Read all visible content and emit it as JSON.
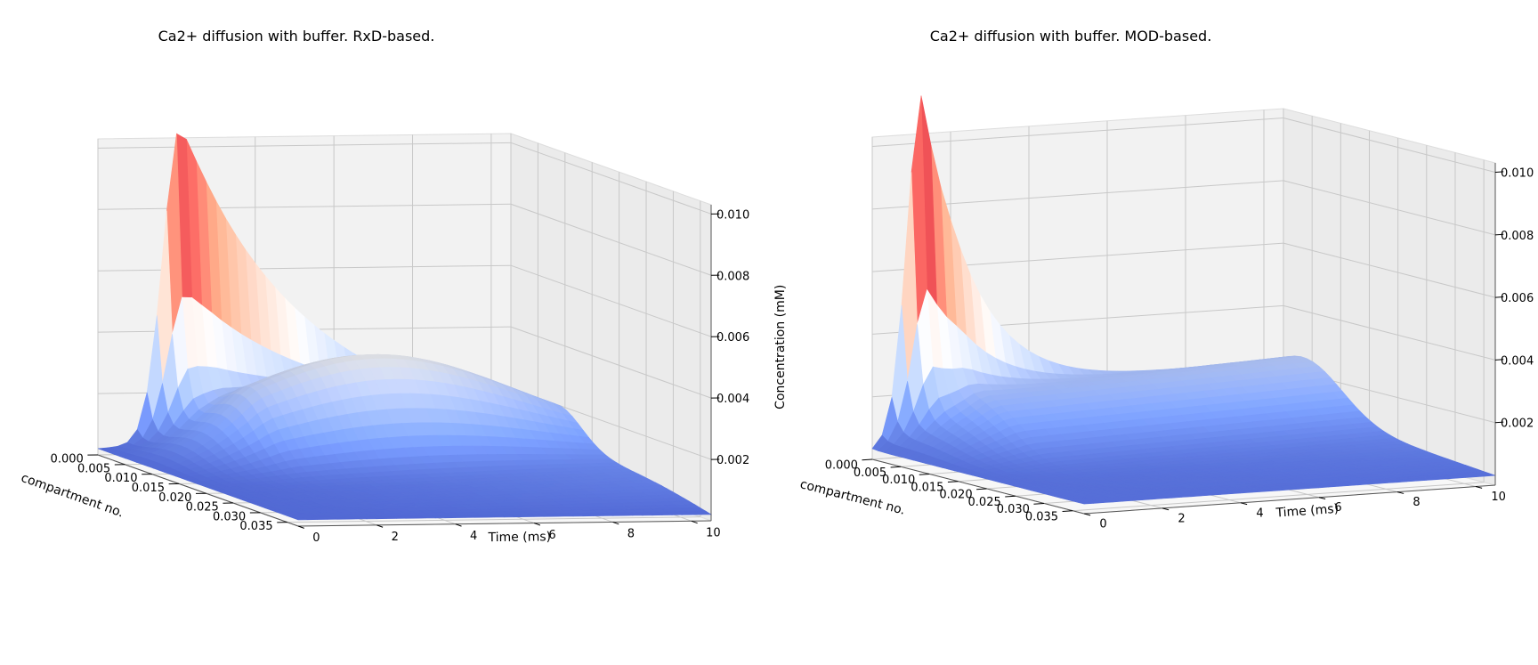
{
  "chart_data": [
    {
      "type": "surface3d",
      "title": "Ca2+ diffusion with buffer. RxD-based.",
      "xlabel": "compartment no.",
      "ylabel": "Time (ms)",
      "zlabel": "Concentration (mM)",
      "xticks": [
        "0.000",
        "0.005",
        "0.010",
        "0.015",
        "0.020",
        "0.025",
        "0.030",
        "0.035"
      ],
      "yticks": [
        "0",
        "2",
        "4",
        "6",
        "8",
        "10"
      ],
      "zticks": [
        "0.002",
        "0.004",
        "0.006",
        "0.008",
        "0.010"
      ],
      "xlim": [
        0,
        0.037
      ],
      "ylim": [
        0,
        10.5
      ],
      "zlim": [
        0,
        0.0103
      ],
      "peak": {
        "x": 0.0,
        "y": 10.0,
        "z": 0.0102
      },
      "colormap": "coolwarm",
      "grid": true
    },
    {
      "type": "surface3d",
      "title": "Ca2+ diffusion with buffer. MOD-based.",
      "xlabel": "compartment no.",
      "ylabel": "Time (ms)",
      "zlabel": "Concentration (mM)",
      "xticks": [
        "0.000",
        "0.005",
        "0.010",
        "0.015",
        "0.020",
        "0.025",
        "0.030",
        "0.035"
      ],
      "yticks": [
        "0",
        "2",
        "4",
        "6",
        "8",
        "10"
      ],
      "zticks": [
        "0.002",
        "0.004",
        "0.006",
        "0.008",
        "0.010"
      ],
      "xlim": [
        0,
        0.037
      ],
      "ylim": [
        0,
        10.5
      ],
      "zlim": [
        0,
        0.0103
      ],
      "peak": {
        "x": 0.0,
        "y": 10.0,
        "z": 0.0102
      },
      "colormap": "coolwarm",
      "grid": true
    }
  ]
}
